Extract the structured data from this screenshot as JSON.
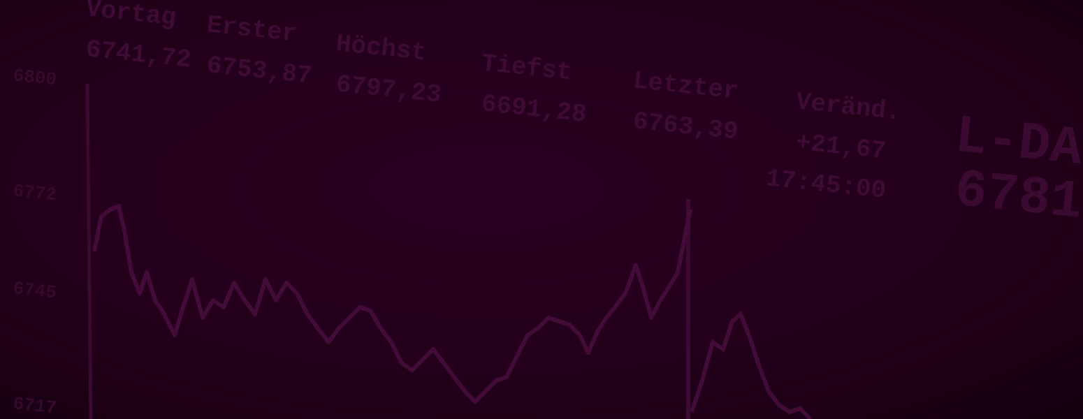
{
  "columns": [
    {
      "label": "Vortag",
      "value": "6741,72"
    },
    {
      "label": "Erster",
      "value": "6753,87"
    },
    {
      "label": "Höchst",
      "value": "6797,23"
    },
    {
      "label": "Tiefst",
      "value": "6691,28"
    },
    {
      "label": "Letzter",
      "value": "6763,39"
    },
    {
      "label": "Veränd.",
      "value": "+21,67"
    }
  ],
  "time": "17:45:00",
  "index": {
    "label": "L-DA",
    "value": "6781"
  },
  "axis_labels": [
    "6800",
    "6772",
    "6745",
    "6717"
  ]
}
